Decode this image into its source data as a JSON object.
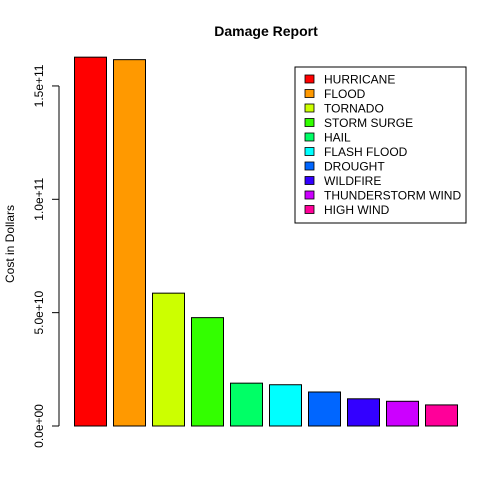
{
  "chart_data": {
    "type": "bar",
    "title": "Damage Report",
    "xlabel": "",
    "ylabel": "Cost in Dollars",
    "ylim": [
      0,
      165000000000
    ],
    "y_ticks": [
      0,
      50000000000,
      100000000000,
      150000000000
    ],
    "y_tick_labels": [
      "0.0e+00",
      "5.0e+10",
      "1.0e+11",
      "1.5e+11"
    ],
    "grid": false,
    "legend_position": "top-right",
    "categories": [
      "HURRICANE",
      "FLOOD",
      "TORNADO",
      "STORM SURGE",
      "HAIL",
      "FLASH FLOOD",
      "DROUGHT",
      "WILDFIRE",
      "THUNDERSTORM WIND",
      "HIGH WIND"
    ],
    "values": [
      162700000000,
      161600000000,
      58600000000,
      47800000000,
      18900000000,
      18200000000,
      15000000000,
      12000000000,
      10900000000,
      9300000000
    ],
    "colors": [
      "#FF0000",
      "#FF9900",
      "#CCFF00",
      "#33FF00",
      "#00FF66",
      "#00FFFF",
      "#0066FF",
      "#3300FF",
      "#CC00FF",
      "#FF0099"
    ]
  }
}
